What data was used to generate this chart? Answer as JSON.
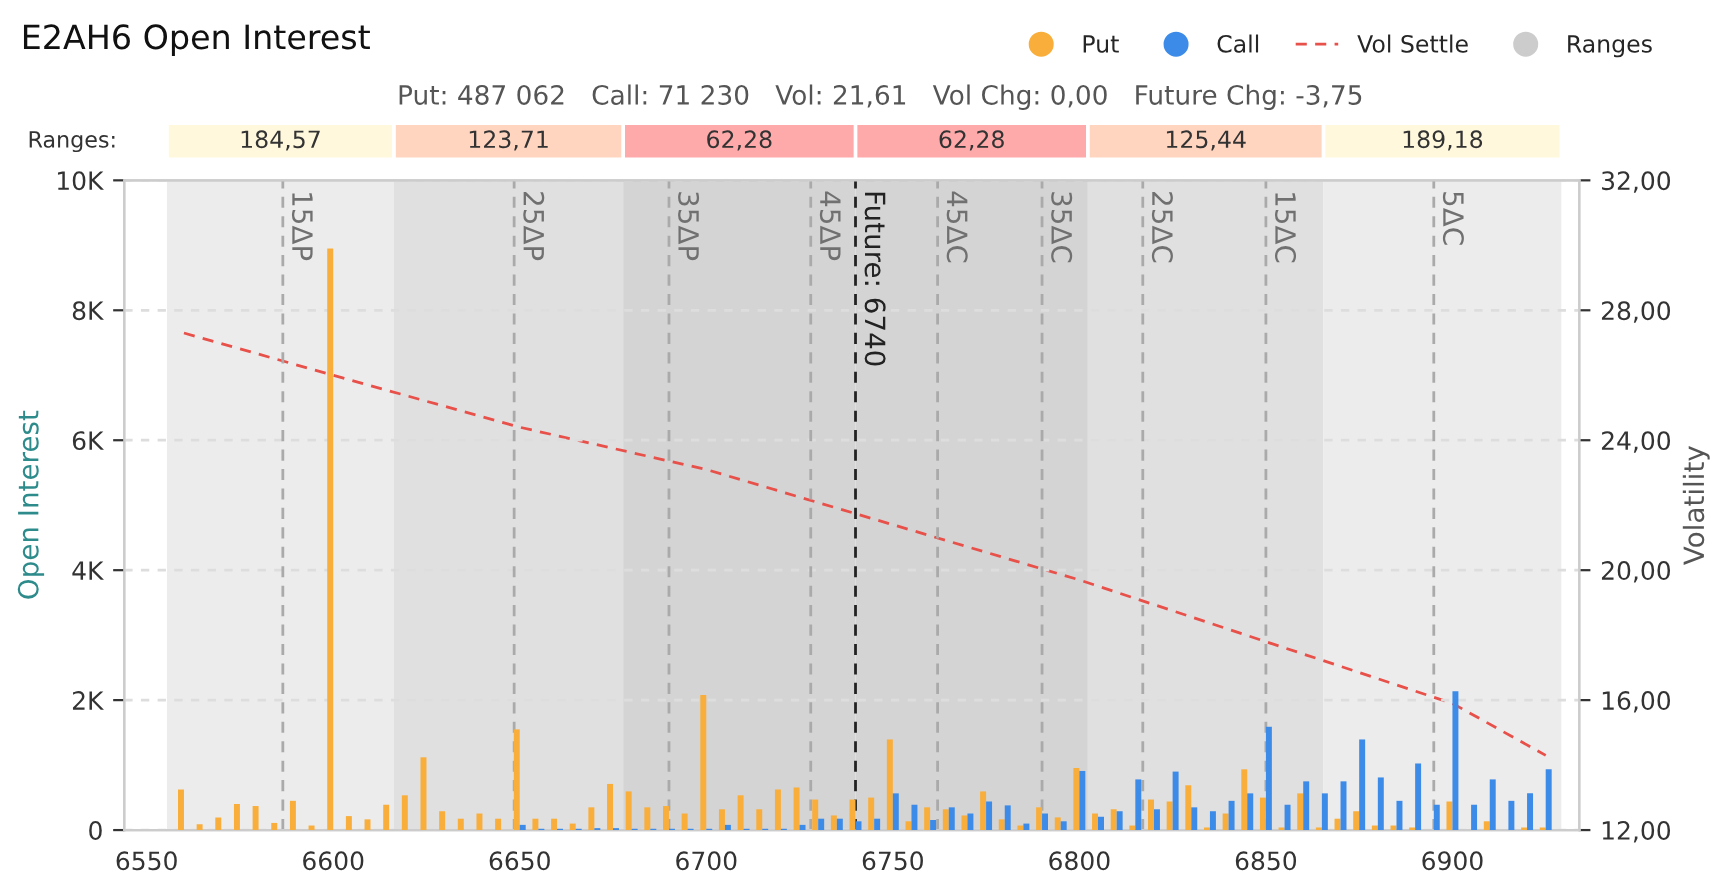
{
  "chart_data": {
    "type": "bar",
    "title": "E2AH6 Open Interest",
    "subtitle": "Put: 487 062   Call: 71 230   Vol: 21,61   Vol Chg: 0,00   Future Chg: -3,75",
    "xlabel": null,
    "ylabel": "Open Interest",
    "y2label": "Volatility",
    "x": [
      6560,
      6565,
      6570,
      6575,
      6580,
      6585,
      6590,
      6595,
      6600,
      6605,
      6610,
      6615,
      6620,
      6625,
      6630,
      6635,
      6640,
      6645,
      6650,
      6655,
      6660,
      6665,
      6670,
      6675,
      6680,
      6685,
      6690,
      6695,
      6700,
      6705,
      6710,
      6715,
      6720,
      6725,
      6730,
      6735,
      6740,
      6745,
      6750,
      6755,
      6760,
      6765,
      6770,
      6775,
      6780,
      6785,
      6790,
      6795,
      6800,
      6805,
      6810,
      6815,
      6820,
      6825,
      6830,
      6835,
      6840,
      6845,
      6850,
      6855,
      6860,
      6865,
      6870,
      6875,
      6880,
      6885,
      6890,
      6895,
      6900,
      6905,
      6910,
      6915,
      6920,
      6925
    ],
    "series": [
      {
        "name": "Put",
        "color": "#f9ae3b",
        "values": [
          625,
          90,
          195,
          400,
          370,
          110,
          450,
          70,
          8950,
          215,
          165,
          390,
          535,
          1120,
          290,
          175,
          255,
          175,
          1550,
          175,
          175,
          100,
          350,
          710,
          595,
          350,
          370,
          255,
          2080,
          320,
          535,
          320,
          625,
          655,
          470,
          225,
          470,
          500,
          1395,
          135,
          350,
          320,
          225,
          595,
          165,
          70,
          350,
          195,
          955,
          255,
          320,
          70,
          470,
          440,
          690,
          40,
          255,
          935,
          500,
          40,
          565,
          40,
          175,
          290,
          70,
          70,
          40,
          null,
          440,
          null,
          135,
          null,
          40,
          40
        ]
      },
      {
        "name": "Call",
        "color": "#3d8be8",
        "values": [
          null,
          null,
          null,
          null,
          null,
          null,
          null,
          null,
          null,
          null,
          null,
          null,
          null,
          null,
          null,
          null,
          null,
          null,
          80,
          20,
          20,
          20,
          30,
          30,
          20,
          20,
          20,
          20,
          20,
          80,
          20,
          20,
          20,
          80,
          175,
          175,
          135,
          175,
          565,
          390,
          155,
          350,
          255,
          440,
          380,
          100,
          255,
          135,
          910,
          205,
          290,
          780,
          320,
          900,
          350,
          290,
          450,
          565,
          1590,
          390,
          750,
          565,
          750,
          1395,
          810,
          450,
          1025,
          390,
          2135,
          390,
          780,
          450,
          565,
          935
        ]
      },
      {
        "name": "Vol Settle",
        "type": "line",
        "axis": "y2",
        "color": "#e8504a",
        "line_style": "dashed",
        "x": [
          6560,
          6600,
          6650,
          6700,
          6750,
          6800,
          6850,
          6900,
          6925
        ],
        "values": [
          27.3,
          26.0,
          24.4,
          23.1,
          21.4,
          19.7,
          17.8,
          15.9,
          14.3
        ]
      }
    ],
    "xlim": [
      6544,
      6934
    ],
    "xticks": [
      6550,
      6600,
      6650,
      6700,
      6750,
      6800,
      6850,
      6900
    ],
    "ylim": [
      0,
      10000
    ],
    "yticks": [
      {
        "value": 0,
        "label": "0"
      },
      {
        "value": 2000,
        "label": "2K"
      },
      {
        "value": 4000,
        "label": "4K"
      },
      {
        "value": 6000,
        "label": "6K"
      },
      {
        "value": 8000,
        "label": "8K"
      },
      {
        "value": 10000,
        "label": "10K"
      }
    ],
    "y2lim": [
      12,
      32
    ],
    "y2ticks": [
      {
        "value": 12,
        "label": "12,00"
      },
      {
        "value": 16,
        "label": "16,00"
      },
      {
        "value": 20,
        "label": "20,00"
      },
      {
        "value": 24,
        "label": "24,00"
      },
      {
        "value": 28,
        "label": "28,00"
      },
      {
        "value": 32,
        "label": "32,00"
      }
    ],
    "bands": [
      {
        "axis": "x",
        "from": 6555.43,
        "to": 6616.29,
        "label": "184,57",
        "color": "#ececec"
      },
      {
        "axis": "x",
        "from": 6616.29,
        "to": 6677.72,
        "label": "123,71",
        "color": "#e0e0e0"
      },
      {
        "axis": "x",
        "from": 6677.72,
        "to": 6740,
        "label": "62,28",
        "color": "#d4d4d4"
      },
      {
        "axis": "x",
        "from": 6740,
        "to": 6802.28,
        "label": "62,28",
        "color": "#d4d4d4"
      },
      {
        "axis": "x",
        "from": 6802.28,
        "to": 6865.44,
        "label": "125,44",
        "color": "#e0e0e0"
      },
      {
        "axis": "x",
        "from": 6865.44,
        "to": 6929.18,
        "label": "189,18",
        "color": "#ececec"
      }
    ],
    "ref_lines": [
      {
        "axis": "x",
        "value": 6586.5,
        "label": "15ΔP",
        "color": "#aaaaaa",
        "line_style": "dashed"
      },
      {
        "axis": "x",
        "value": 6648.5,
        "label": "25ΔP",
        "color": "#aaaaaa",
        "line_style": "dashed"
      },
      {
        "axis": "x",
        "value": 6690,
        "label": "35ΔP",
        "color": "#aaaaaa",
        "line_style": "dashed"
      },
      {
        "axis": "x",
        "value": 6728,
        "label": "45ΔP",
        "color": "#aaaaaa",
        "line_style": "dashed"
      },
      {
        "axis": "x",
        "value": 6740,
        "label": "Future: 6740",
        "color": "#222222",
        "line_style": "dashed"
      },
      {
        "axis": "x",
        "value": 6762,
        "label": "45ΔC",
        "color": "#aaaaaa",
        "line_style": "dashed"
      },
      {
        "axis": "x",
        "value": 6790,
        "label": "35ΔC",
        "color": "#aaaaaa",
        "line_style": "dashed"
      },
      {
        "axis": "x",
        "value": 6817,
        "label": "25ΔC",
        "color": "#aaaaaa",
        "line_style": "dashed"
      },
      {
        "axis": "x",
        "value": 6850,
        "label": "15ΔC",
        "color": "#aaaaaa",
        "line_style": "dashed"
      },
      {
        "axis": "x",
        "value": 6895,
        "label": "5ΔC",
        "color": "#aaaaaa",
        "line_style": "dashed"
      }
    ],
    "annotations": [
      "Ranges:",
      "Ranges"
    ],
    "grid": "y",
    "legend": "top right"
  }
}
